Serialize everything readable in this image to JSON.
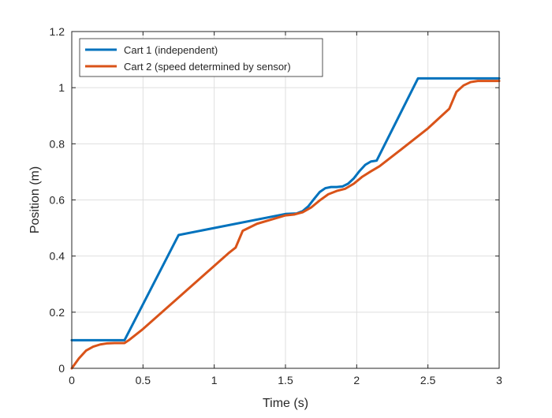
{
  "chart_data": {
    "type": "line",
    "title": "",
    "xlabel": "Time (s)",
    "ylabel": "Position (m)",
    "xlim": [
      0,
      3
    ],
    "ylim": [
      0,
      1.2
    ],
    "xticks": [
      0,
      0.5,
      1,
      1.5,
      2,
      2.5,
      3
    ],
    "xtick_labels": [
      "0",
      "0.5",
      "1",
      "1.5",
      "2",
      "2.5",
      "3"
    ],
    "yticks": [
      0,
      0.2,
      0.4,
      0.6,
      0.8,
      1,
      1.2
    ],
    "ytick_labels": [
      "0",
      "0.2",
      "0.4",
      "0.6",
      "0.8",
      "1",
      "1.2"
    ],
    "grid": true,
    "legend": "top-left",
    "series": [
      {
        "name": "Cart 1 (independent)",
        "color": "#0072bd",
        "x": [
          0,
          0.37,
          0.75,
          1.5,
          1.58,
          1.62,
          1.66,
          1.7,
          1.74,
          1.78,
          1.82,
          1.86,
          1.9,
          1.94,
          1.98,
          2.02,
          2.06,
          2.1,
          2.14,
          2.43,
          3.0
        ],
        "y": [
          0.1,
          0.1,
          0.475,
          0.55,
          0.552,
          0.56,
          0.577,
          0.603,
          0.628,
          0.642,
          0.646,
          0.646,
          0.648,
          0.658,
          0.677,
          0.703,
          0.725,
          0.737,
          0.74,
          1.033,
          1.033
        ]
      },
      {
        "name": "Cart 2 (speed determined by sensor)",
        "color": "#d95319",
        "x": [
          0,
          0.05,
          0.1,
          0.15,
          0.2,
          0.25,
          0.3,
          0.35,
          0.37,
          0.4,
          0.5,
          0.6,
          0.7,
          0.8,
          0.9,
          1.0,
          1.1,
          1.15,
          1.2,
          1.3,
          1.4,
          1.5,
          1.56,
          1.62,
          1.68,
          1.74,
          1.8,
          1.86,
          1.92,
          1.98,
          2.04,
          2.1,
          2.16,
          2.3,
          2.5,
          2.65,
          2.7,
          2.75,
          2.8,
          2.85,
          3.0
        ],
        "y": [
          0,
          0.035,
          0.063,
          0.077,
          0.085,
          0.089,
          0.09,
          0.09,
          0.09,
          0.1,
          0.14,
          0.185,
          0.23,
          0.275,
          0.32,
          0.365,
          0.41,
          0.43,
          0.49,
          0.515,
          0.53,
          0.545,
          0.548,
          0.556,
          0.573,
          0.598,
          0.62,
          0.632,
          0.64,
          0.658,
          0.683,
          0.702,
          0.72,
          0.775,
          0.855,
          0.925,
          0.985,
          1.008,
          1.02,
          1.024,
          1.024
        ]
      }
    ]
  }
}
